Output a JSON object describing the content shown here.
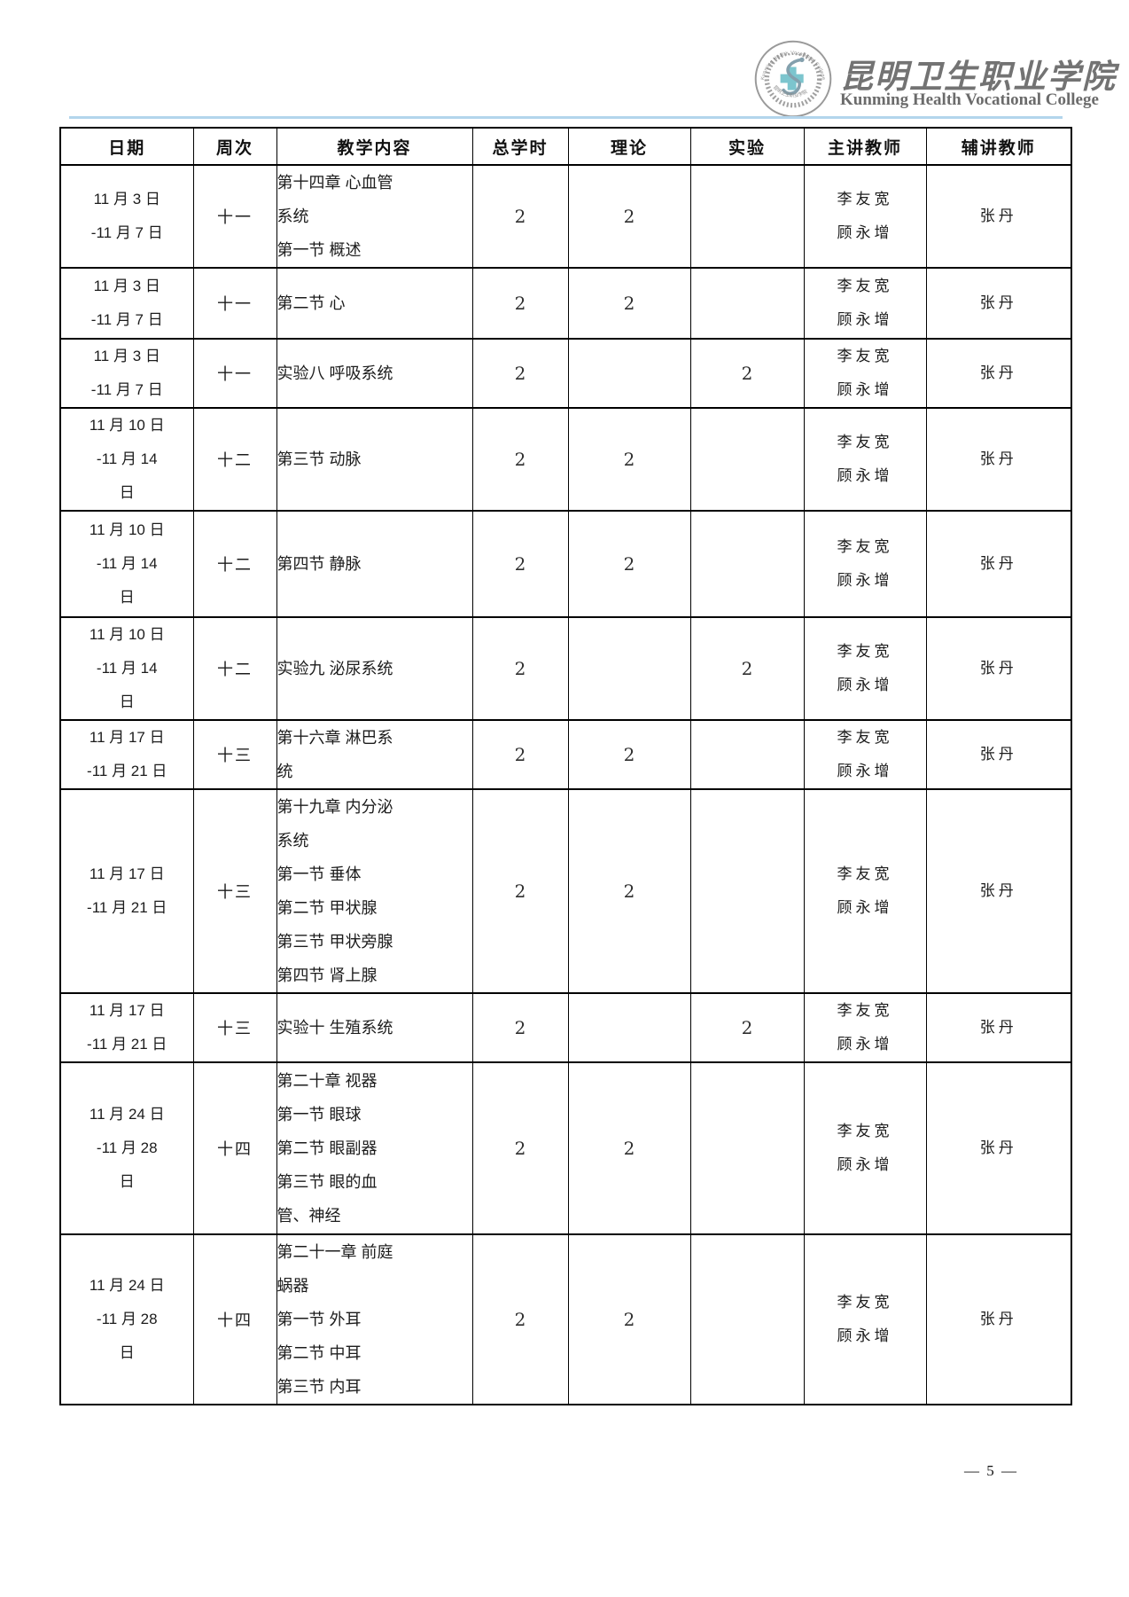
{
  "header": {
    "college_name_zh": "昆明卫生职业学院",
    "college_name_en": "Kunming Health Vocational College",
    "logo": {
      "ring_text": "Kunming Health Vocational College",
      "bottom_text": "昆明卫生职业学院",
      "cross_color": "#7cc5ce",
      "seal_color": "#8c8c8c"
    },
    "divider_color": "#b3d5ec"
  },
  "table": {
    "columns": [
      "日期",
      "周次",
      "教学内容",
      "总学时",
      "理论",
      "实验",
      "主讲教师",
      "辅讲教师"
    ],
    "rows": [
      {
        "date_lines": [
          "11 月 3 日",
          "-11 月 7 日"
        ],
        "week": "十一",
        "content_lines": [
          "第十四章 心血管",
          "系统",
          "第一节 概述"
        ],
        "total_hours": "2",
        "theory": "2",
        "experiment": "",
        "main_teacher_lines": [
          "李友宽",
          "顾永增"
        ],
        "assistant_teacher": "张丹"
      },
      {
        "date_lines": [
          "11 月 3 日",
          "-11 月 7 日"
        ],
        "week": "十一",
        "content_lines": [
          "第二节 心"
        ],
        "total_hours": "2",
        "theory": "2",
        "experiment": "",
        "main_teacher_lines": [
          "李友宽",
          "顾永增"
        ],
        "assistant_teacher": "张丹"
      },
      {
        "date_lines": [
          "11 月 3 日",
          "-11 月 7 日"
        ],
        "week": "十一",
        "content_lines": [
          "实验八 呼吸系统"
        ],
        "total_hours": "2",
        "theory": "",
        "experiment": "2",
        "main_teacher_lines": [
          "李友宽",
          "顾永增"
        ],
        "assistant_teacher": "张丹"
      },
      {
        "date_lines": [
          "11 月 10 日",
          "-11 月 14",
          "日"
        ],
        "week": "十二",
        "content_lines": [
          "第三节 动脉"
        ],
        "total_hours": "2",
        "theory": "2",
        "experiment": "",
        "main_teacher_lines": [
          "李友宽",
          "顾永增"
        ],
        "assistant_teacher": "张丹"
      },
      {
        "date_lines": [
          "11 月 10 日",
          "-11 月 14",
          "日"
        ],
        "week": "十二",
        "content_lines": [
          "第四节 静脉"
        ],
        "total_hours": "2",
        "theory": "2",
        "experiment": "",
        "main_teacher_lines": [
          "李友宽",
          "顾永增"
        ],
        "assistant_teacher": "张丹"
      },
      {
        "date_lines": [
          "11 月 10 日",
          "-11 月 14",
          "日"
        ],
        "week": "十二",
        "content_lines": [
          "实验九 泌尿系统"
        ],
        "total_hours": "2",
        "theory": "",
        "experiment": "2",
        "main_teacher_lines": [
          "李友宽",
          "顾永增"
        ],
        "assistant_teacher": "张丹"
      },
      {
        "date_lines": [
          "11 月 17 日",
          "-11 月 21 日"
        ],
        "week": "十三",
        "content_lines": [
          "第十六章 淋巴系",
          "统"
        ],
        "total_hours": "2",
        "theory": "2",
        "experiment": "",
        "main_teacher_lines": [
          "李友宽",
          "顾永增"
        ],
        "assistant_teacher": "张丹"
      },
      {
        "date_lines": [
          "11 月 17 日",
          "-11 月 21 日"
        ],
        "week": "十三",
        "content_lines": [
          "第十九章 内分泌",
          "系统",
          "第一节 垂体",
          "第二节 甲状腺",
          "第三节 甲状旁腺",
          "第四节 肾上腺"
        ],
        "total_hours": "2",
        "theory": "2",
        "experiment": "",
        "main_teacher_lines": [
          "李友宽",
          "顾永增"
        ],
        "assistant_teacher": "张丹"
      },
      {
        "date_lines": [
          "11 月 17 日",
          "-11 月 21 日"
        ],
        "week": "十三",
        "content_lines": [
          "实验十 生殖系统"
        ],
        "total_hours": "2",
        "theory": "",
        "experiment": "2",
        "main_teacher_lines": [
          "李友宽",
          "顾永增"
        ],
        "assistant_teacher": "张丹"
      },
      {
        "date_lines": [
          "11 月 24 日",
          "-11 月 28",
          "日"
        ],
        "week": "十四",
        "content_lines": [
          "第二十章 视器",
          "第一节 眼球",
          "第二节 眼副器",
          "第三节 眼的血",
          "管、神经"
        ],
        "total_hours": "2",
        "theory": "2",
        "experiment": "",
        "main_teacher_lines": [
          "李友宽",
          "顾永增"
        ],
        "assistant_teacher": "张丹"
      },
      {
        "date_lines": [
          "11 月 24 日",
          "-11 月 28",
          "日"
        ],
        "week": "十四",
        "content_lines": [
          "第二十一章 前庭",
          "蜗器",
          "第一节 外耳",
          "第二节 中耳",
          "第三节 内耳"
        ],
        "total_hours": "2",
        "theory": "2",
        "experiment": "",
        "main_teacher_lines": [
          "李友宽",
          "顾永增"
        ],
        "assistant_teacher": "张丹"
      }
    ]
  },
  "footer": {
    "page_number": "— 5 —"
  }
}
